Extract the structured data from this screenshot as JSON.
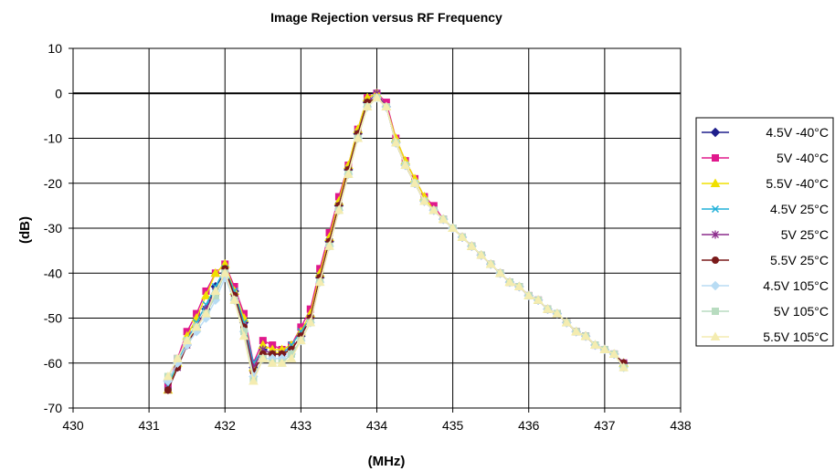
{
  "chart_data": {
    "type": "line",
    "title": "Image Rejection versus RF Frequency",
    "xlabel": "(MHz)",
    "ylabel": "(dB)",
    "xlim": [
      430,
      438
    ],
    "ylim": [
      -70,
      10
    ],
    "xticks": [
      430,
      431,
      432,
      433,
      434,
      435,
      436,
      437,
      438
    ],
    "yticks": [
      10,
      0,
      -10,
      -20,
      -30,
      -40,
      -50,
      -60,
      -70
    ],
    "grid": true,
    "legend_position": "right",
    "x": [
      431.25,
      431.375,
      431.5,
      431.625,
      431.75,
      431.875,
      432.0,
      432.125,
      432.25,
      432.375,
      432.5,
      432.625,
      432.75,
      432.875,
      433.0,
      433.125,
      433.25,
      433.375,
      433.5,
      433.625,
      433.75,
      433.875,
      434.0,
      434.125,
      434.25,
      434.375,
      434.5,
      434.625,
      434.75,
      434.875,
      435.0,
      435.125,
      435.25,
      435.375,
      435.5,
      435.625,
      435.75,
      435.875,
      436.0,
      436.125,
      436.25,
      436.375,
      436.5,
      436.625,
      436.75,
      436.875,
      437.0,
      437.125,
      437.25
    ],
    "series": [
      {
        "name": "4.5V -40°C",
        "color": "#1f1f8c",
        "marker": "diamond",
        "values": [
          -64,
          -60,
          -56,
          -52,
          -48,
          -43,
          -40,
          -44,
          -51,
          -61,
          -57,
          -58,
          -58,
          -57,
          -54,
          -50,
          -41,
          -33,
          -25,
          -17,
          -9,
          -2,
          0,
          -3,
          -11,
          -16,
          -20,
          -24,
          -26,
          -28,
          -30,
          -32,
          -34,
          -36,
          -38,
          -40,
          -42,
          -43,
          -45,
          -46,
          -48,
          -49,
          -51,
          -53,
          -54,
          -56,
          -57,
          -58,
          -60
        ]
      },
      {
        "name": "5V -40°C",
        "color": "#e0188c",
        "marker": "square",
        "values": [
          -65,
          -59,
          -53,
          -49,
          -44,
          -40,
          -38,
          -43,
          -49,
          -60,
          -55,
          -56,
          -57,
          -56,
          -52,
          -48,
          -39,
          -31,
          -23,
          -16,
          -8,
          -1,
          0,
          -2,
          -10,
          -15,
          -19,
          -23,
          -25,
          -28,
          -30,
          -32,
          -34,
          -36,
          -38,
          -40,
          -42,
          -43,
          -45,
          -46,
          -48,
          -49,
          -51,
          -53,
          -54,
          -56,
          -57,
          -58,
          -60
        ]
      },
      {
        "name": "5.5V -40°C",
        "color": "#f0e000",
        "marker": "triangle",
        "values": [
          -66,
          -60,
          -54,
          -50,
          -45,
          -40,
          -38,
          -44,
          -50,
          -61,
          -56,
          -57,
          -57,
          -56,
          -53,
          -49,
          -40,
          -32,
          -24,
          -16,
          -8,
          -1,
          0,
          -3,
          -10,
          -15,
          -19,
          -23,
          -26,
          -28,
          -30,
          -32,
          -34,
          -36,
          -38,
          -40,
          -42,
          -43,
          -45,
          -46,
          -48,
          -49,
          -51,
          -53,
          -54,
          -56,
          -57,
          -58,
          -60
        ]
      },
      {
        "name": "4.5V 25°C",
        "color": "#20b0d8",
        "marker": "x",
        "values": [
          -65,
          -60,
          -55,
          -51,
          -47,
          -43,
          -39,
          -44,
          -51,
          -60,
          -57,
          -58,
          -58,
          -56,
          -53,
          -50,
          -41,
          -33,
          -25,
          -17,
          -9,
          -2,
          0,
          -3,
          -11,
          -16,
          -20,
          -24,
          -26,
          -28,
          -30,
          -32,
          -34,
          -36,
          -38,
          -40,
          -42,
          -43,
          -45,
          -46,
          -48,
          -49,
          -51,
          -53,
          -54,
          -56,
          -57,
          -58,
          -60
        ]
      },
      {
        "name": "5V 25°C",
        "color": "#8c2c8c",
        "marker": "star",
        "values": [
          -66,
          -61,
          -56,
          -52,
          -48,
          -44,
          -40,
          -45,
          -52,
          -61,
          -57,
          -58,
          -58,
          -57,
          -54,
          -50,
          -41,
          -33,
          -25,
          -17,
          -9,
          -2,
          0,
          -3,
          -11,
          -16,
          -20,
          -24,
          -26,
          -28,
          -30,
          -32,
          -34,
          -36,
          -38,
          -40,
          -42,
          -43,
          -45,
          -46,
          -48,
          -49,
          -51,
          -53,
          -54,
          -56,
          -57,
          -58,
          -60
        ]
      },
      {
        "name": "5.5V 25°C",
        "color": "#7a1a1a",
        "marker": "circle",
        "values": [
          -66,
          -61,
          -56,
          -52,
          -49,
          -45,
          -39,
          -45,
          -52,
          -62,
          -58,
          -58,
          -58,
          -57,
          -54,
          -50,
          -41,
          -33,
          -25,
          -17,
          -9,
          -2,
          -1,
          -3,
          -11,
          -16,
          -20,
          -24,
          -26,
          -28,
          -30,
          -32,
          -34,
          -36,
          -38,
          -40,
          -42,
          -43,
          -45,
          -46,
          -48,
          -49,
          -51,
          -53,
          -54,
          -56,
          -57,
          -58,
          -60
        ]
      },
      {
        "name": "4.5V 105°C",
        "color": "#b8dcf4",
        "marker": "diamond",
        "values": [
          -64,
          -60,
          -56,
          -53,
          -50,
          -46,
          -41,
          -46,
          -53,
          -63,
          -59,
          -59,
          -59,
          -58,
          -55,
          -51,
          -42,
          -34,
          -26,
          -18,
          -10,
          -3,
          -1,
          -3,
          -11,
          -16,
          -20,
          -24,
          -26,
          -28,
          -30,
          -32,
          -34,
          -36,
          -38,
          -40,
          -42,
          -43,
          -45,
          -46,
          -48,
          -49,
          -51,
          -53,
          -54,
          -56,
          -57,
          -58,
          -61
        ]
      },
      {
        "name": "5V 105°C",
        "color": "#b8dcc0",
        "marker": "square",
        "values": [
          -63,
          -59,
          -55,
          -52,
          -49,
          -45,
          -40,
          -46,
          -53,
          -64,
          -59,
          -60,
          -60,
          -58,
          -55,
          -51,
          -42,
          -34,
          -26,
          -18,
          -10,
          -3,
          -1,
          -3,
          -11,
          -16,
          -20,
          -24,
          -26,
          -28,
          -30,
          -32,
          -34,
          -36,
          -38,
          -40,
          -42,
          -43,
          -45,
          -46,
          -48,
          -49,
          -51,
          -53,
          -54,
          -56,
          -57,
          -58,
          -61
        ]
      },
      {
        "name": "5.5V 105°C",
        "color": "#f4ecb0",
        "marker": "triangle",
        "values": [
          -63,
          -59,
          -55,
          -52,
          -49,
          -44,
          -40,
          -46,
          -54,
          -64,
          -59,
          -60,
          -60,
          -59,
          -55,
          -51,
          -42,
          -34,
          -26,
          -18,
          -10,
          -3,
          -1,
          -3,
          -11,
          -16,
          -20,
          -24,
          -26,
          -28,
          -30,
          -32,
          -34,
          -36,
          -38,
          -40,
          -42,
          -43,
          -45,
          -46,
          -48,
          -49,
          -51,
          -53,
          -54,
          -56,
          -57,
          -58,
          -61
        ]
      }
    ]
  }
}
